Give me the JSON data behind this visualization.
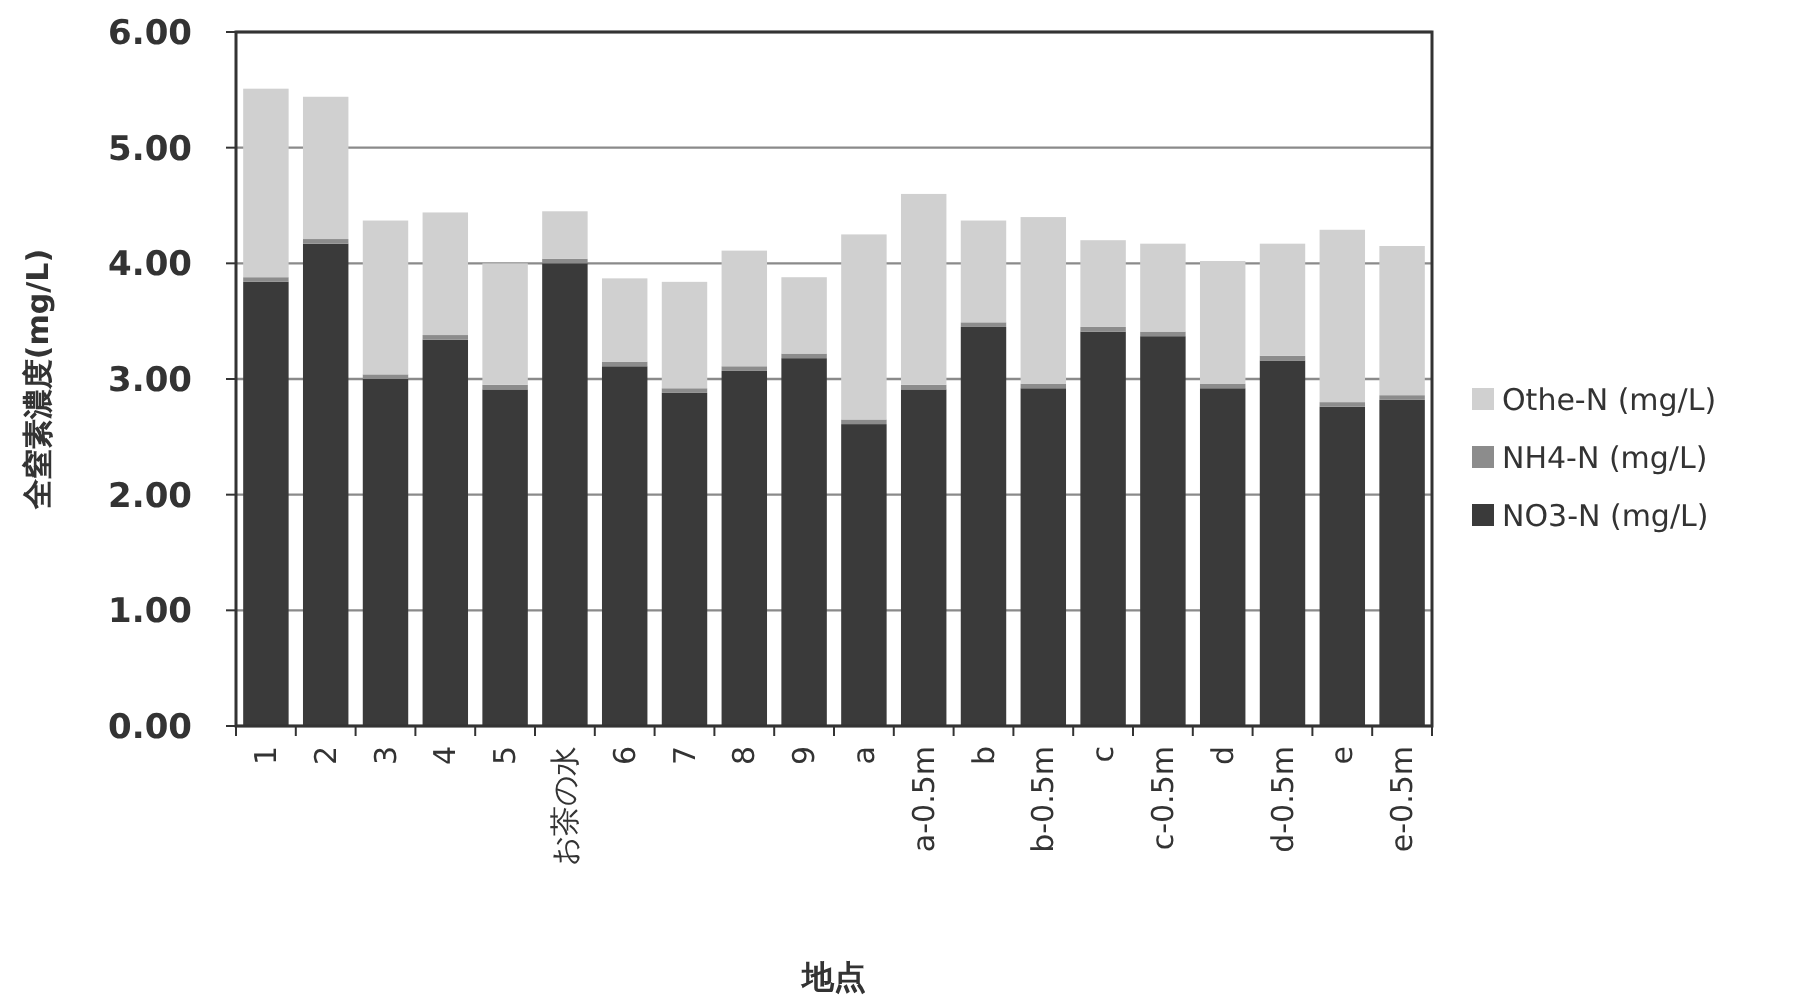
{
  "chart_data": {
    "type": "bar",
    "stacked": true,
    "xlabel": "地点",
    "ylabel": "全窒素濃度(mg/L)",
    "categories": [
      "1",
      "2",
      "3",
      "4",
      "5",
      "お茶の水",
      "6",
      "7",
      "8",
      "9",
      "a",
      "a-0.5m",
      "b",
      "b-0.5m",
      "c",
      "c-0.5m",
      "d",
      "d-0.5m",
      "e",
      "e-0.5m"
    ],
    "series": [
      {
        "name": "NO3-N (mg/L)",
        "color": "#3a3a3a",
        "values": [
          3.84,
          4.17,
          3.0,
          3.34,
          2.91,
          4.0,
          3.11,
          2.88,
          3.07,
          3.18,
          2.61,
          2.91,
          3.45,
          2.92,
          3.41,
          3.37,
          2.92,
          3.16,
          2.76,
          2.82
        ]
      },
      {
        "name": "NH4-N (mg/L)",
        "color": "#8c8c8c",
        "values": [
          0.04,
          0.04,
          0.04,
          0.04,
          0.04,
          0.04,
          0.04,
          0.04,
          0.04,
          0.04,
          0.04,
          0.04,
          0.04,
          0.04,
          0.04,
          0.04,
          0.04,
          0.04,
          0.04,
          0.04
        ]
      },
      {
        "name": "Othe-N (mg/L)",
        "color": "#d0d0d0",
        "values": [
          1.63,
          1.23,
          1.33,
          1.06,
          1.05,
          0.41,
          0.72,
          0.92,
          1.0,
          0.66,
          1.6,
          1.65,
          0.88,
          1.44,
          0.75,
          0.76,
          1.06,
          0.97,
          1.49,
          1.29
        ]
      }
    ],
    "ylim": [
      0,
      6
    ],
    "yticks": [
      {
        "value": 0,
        "label": "0.00"
      },
      {
        "value": 1,
        "label": "1.00"
      },
      {
        "value": 2,
        "label": "2.00"
      },
      {
        "value": 3,
        "label": "3.00"
      },
      {
        "value": 4,
        "label": "4.00"
      },
      {
        "value": 5,
        "label": "5.00"
      },
      {
        "value": 6,
        "label": "6.00"
      }
    ],
    "grid": "y",
    "legend": "right"
  }
}
